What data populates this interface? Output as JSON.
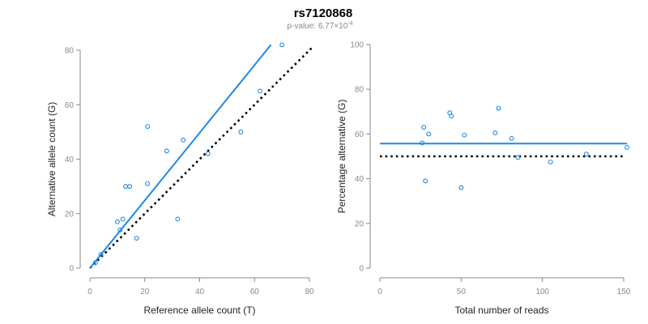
{
  "title": "rs7120868",
  "subtitle": "p-value: 6.77×10",
  "subtitle_exp": "-4",
  "colors": {
    "series": "#1e88e5",
    "reference_line": "#000000",
    "axis": "#888888"
  },
  "chart_data": [
    {
      "type": "scatter",
      "xlabel": "Reference allele count (T)",
      "ylabel": "Alternative allele count (G)",
      "xlim": [
        0,
        80
      ],
      "ylim": [
        0,
        80
      ],
      "xticks": [
        0,
        20,
        40,
        60,
        80
      ],
      "yticks": [
        0,
        20,
        40,
        60,
        80
      ],
      "points": [
        {
          "x": 2,
          "y": 2
        },
        {
          "x": 4,
          "y": 5
        },
        {
          "x": 10,
          "y": 17
        },
        {
          "x": 11,
          "y": 14
        },
        {
          "x": 12,
          "y": 18
        },
        {
          "x": 13,
          "y": 30
        },
        {
          "x": 14.5,
          "y": 30
        },
        {
          "x": 17,
          "y": 11
        },
        {
          "x": 21,
          "y": 52
        },
        {
          "x": 21,
          "y": 31
        },
        {
          "x": 28,
          "y": 43
        },
        {
          "x": 32,
          "y": 18
        },
        {
          "x": 34,
          "y": 47
        },
        {
          "x": 43,
          "y": 42
        },
        {
          "x": 55,
          "y": 50
        },
        {
          "x": 62,
          "y": 65
        },
        {
          "x": 70,
          "y": 82
        }
      ],
      "fit_line": {
        "x": [
          0,
          66
        ],
        "y": [
          0,
          82
        ]
      },
      "reference_line": {
        "x": [
          0,
          81
        ],
        "y": [
          0,
          81
        ]
      },
      "grid": false
    },
    {
      "type": "scatter",
      "xlabel": "Total number of reads",
      "ylabel": "Percentage alternative (G)",
      "xlim": [
        0,
        150
      ],
      "ylim": [
        0,
        100
      ],
      "xticks": [
        0,
        50,
        100,
        150
      ],
      "yticks": [
        0,
        20,
        40,
        60,
        80,
        100
      ],
      "points": [
        {
          "x": 26,
          "y": 56
        },
        {
          "x": 27,
          "y": 63
        },
        {
          "x": 28,
          "y": 39
        },
        {
          "x": 30,
          "y": 60
        },
        {
          "x": 43,
          "y": 69.5
        },
        {
          "x": 44,
          "y": 68
        },
        {
          "x": 50,
          "y": 36
        },
        {
          "x": 52,
          "y": 59.5
        },
        {
          "x": 71,
          "y": 60.5
        },
        {
          "x": 73,
          "y": 71.5
        },
        {
          "x": 81,
          "y": 58
        },
        {
          "x": 85,
          "y": 49.5
        },
        {
          "x": 105,
          "y": 47.5
        },
        {
          "x": 127,
          "y": 51
        },
        {
          "x": 152,
          "y": 54
        }
      ],
      "fit_line": {
        "x": [
          0,
          152
        ],
        "y": [
          55.7,
          55.7
        ]
      },
      "reference_line": {
        "x": [
          0,
          150
        ],
        "y": [
          50,
          50
        ]
      },
      "grid": false
    }
  ]
}
